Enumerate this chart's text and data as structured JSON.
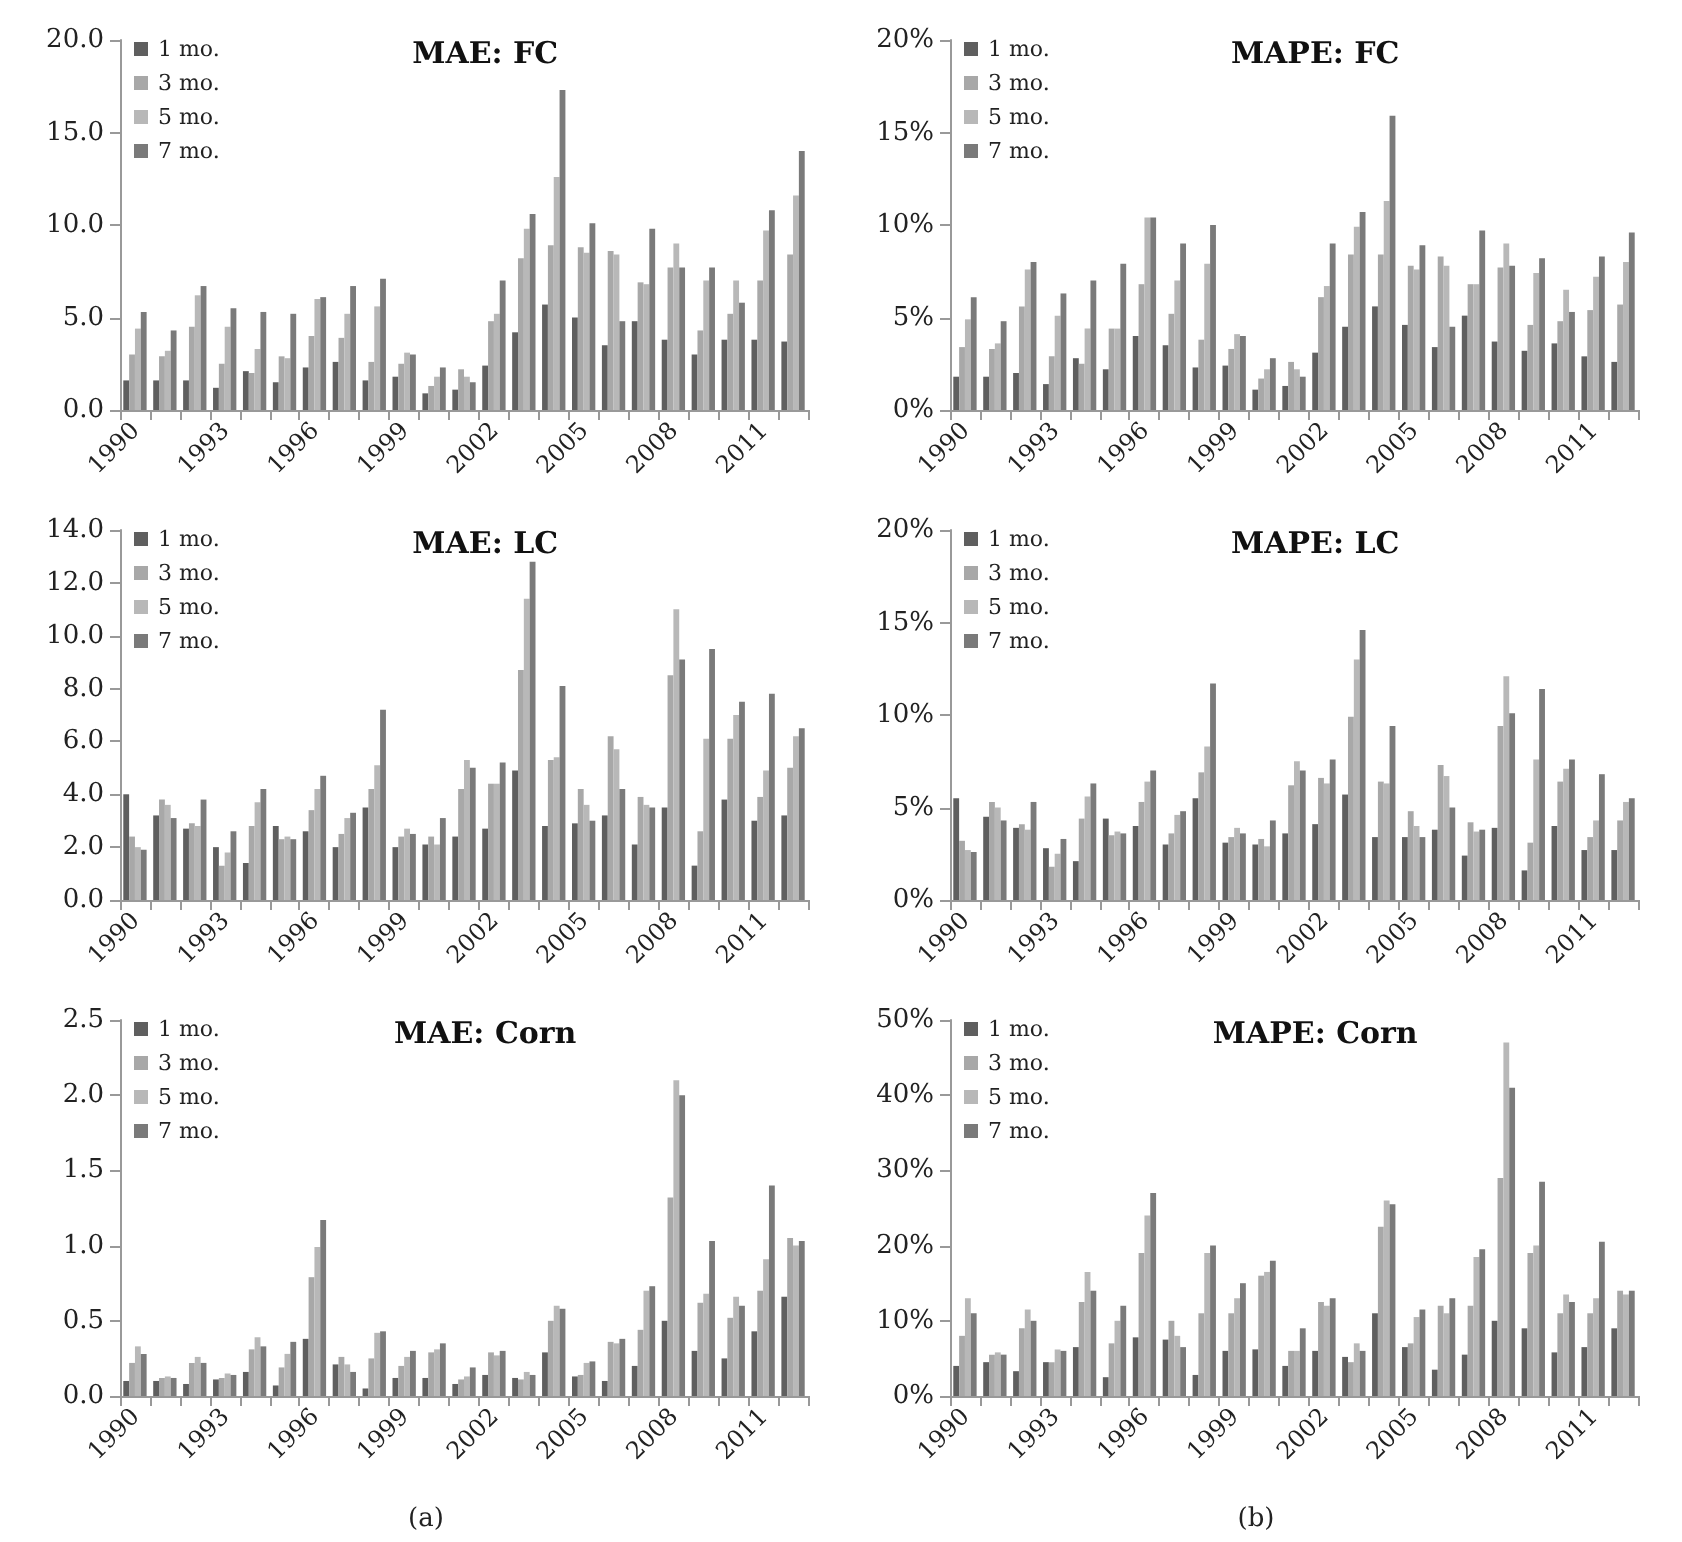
{
  "chart_data": [
    {
      "type": "bar",
      "title": "MAE: FC",
      "categories": [
        "1990",
        null,
        null,
        "1993",
        null,
        null,
        "1996",
        null,
        null,
        "1999",
        null,
        null,
        "2002",
        null,
        null,
        "2005",
        null,
        null,
        "2008",
        null,
        null,
        "2011",
        null
      ],
      "series": [
        {
          "name": "1 mo.",
          "color": "#5f5f5f",
          "values": [
            1.6,
            1.6,
            1.6,
            1.2,
            2.1,
            1.5,
            2.3,
            2.6,
            1.6,
            1.8,
            0.9,
            1.1,
            2.4,
            4.2,
            5.7,
            5.0,
            3.5,
            4.8,
            3.8,
            3.0,
            3.8,
            3.8,
            3.7
          ]
        },
        {
          "name": "3 mo.",
          "color": "#a8a8a8",
          "values": [
            3.0,
            2.9,
            4.5,
            2.5,
            2.0,
            2.9,
            4.0,
            3.9,
            2.6,
            2.5,
            1.3,
            2.2,
            4.8,
            8.2,
            8.9,
            8.8,
            8.6,
            6.9,
            7.7,
            4.3,
            5.2,
            7.0,
            8.4
          ]
        },
        {
          "name": "5 mo.",
          "color": "#b8b8b8",
          "values": [
            4.4,
            3.2,
            6.2,
            4.5,
            3.3,
            2.8,
            6.0,
            5.2,
            5.6,
            3.1,
            1.8,
            1.8,
            5.2,
            9.8,
            12.6,
            8.5,
            8.4,
            6.8,
            9.0,
            7.0,
            7.0,
            9.7,
            11.6
          ]
        },
        {
          "name": "7 mo.",
          "color": "#7a7a7a",
          "values": [
            5.3,
            4.3,
            6.7,
            5.5,
            5.3,
            5.2,
            6.1,
            6.7,
            7.1,
            3.0,
            2.3,
            1.5,
            7.0,
            10.6,
            17.3,
            10.1,
            4.8,
            9.8,
            7.7,
            7.7,
            5.8,
            10.8,
            14.0
          ]
        }
      ],
      "ylim": [
        0,
        20
      ],
      "yticks": [
        {
          "value": 0,
          "label": "0.0"
        },
        {
          "value": 5,
          "label": "5.0"
        },
        {
          "value": 10,
          "label": "10.0"
        },
        {
          "value": 15,
          "label": "15.0"
        },
        {
          "value": 20,
          "label": "20.0"
        }
      ],
      "legend": "top left",
      "grid": false
    },
    {
      "type": "bar",
      "title": "MAPE: FC",
      "categories": [
        "1990",
        null,
        null,
        "1993",
        null,
        null,
        "1996",
        null,
        null,
        "1999",
        null,
        null,
        "2002",
        null,
        null,
        "2005",
        null,
        null,
        "2008",
        null,
        null,
        "2011",
        null
      ],
      "series": [
        {
          "name": "1 mo.",
          "color": "#5f5f5f",
          "values": [
            1.8,
            1.8,
            2.0,
            1.4,
            2.8,
            2.2,
            4.0,
            3.5,
            2.3,
            2.4,
            1.1,
            1.3,
            3.1,
            4.5,
            5.6,
            4.6,
            3.4,
            5.1,
            3.7,
            3.2,
            3.6,
            2.9,
            2.6
          ]
        },
        {
          "name": "3 mo.",
          "color": "#a8a8a8",
          "values": [
            3.4,
            3.3,
            5.6,
            2.9,
            2.5,
            4.4,
            6.8,
            5.2,
            3.8,
            3.3,
            1.7,
            2.6,
            6.1,
            8.4,
            8.4,
            7.8,
            8.3,
            6.8,
            7.7,
            4.6,
            4.8,
            5.4,
            5.7
          ]
        },
        {
          "name": "5 mo.",
          "color": "#b8b8b8",
          "values": [
            4.9,
            3.6,
            7.6,
            5.1,
            4.4,
            4.4,
            10.4,
            7.0,
            7.9,
            4.1,
            2.2,
            2.2,
            6.7,
            9.9,
            11.3,
            7.6,
            7.8,
            6.8,
            9.0,
            7.4,
            6.5,
            7.2,
            8.0
          ]
        },
        {
          "name": "7 mo.",
          "color": "#7a7a7a",
          "values": [
            6.1,
            4.8,
            8.0,
            6.3,
            7.0,
            7.9,
            10.4,
            9.0,
            10.0,
            4.0,
            2.8,
            1.8,
            9.0,
            10.7,
            15.9,
            8.9,
            4.5,
            9.7,
            7.8,
            8.2,
            5.3,
            8.3,
            9.6
          ]
        }
      ],
      "ylim": [
        0,
        20
      ],
      "yticks": [
        {
          "value": 0,
          "label": "0%"
        },
        {
          "value": 5,
          "label": "5%"
        },
        {
          "value": 10,
          "label": "10%"
        },
        {
          "value": 15,
          "label": "15%"
        },
        {
          "value": 20,
          "label": "20%"
        }
      ],
      "legend": "top left",
      "grid": false
    },
    {
      "type": "bar",
      "title": "MAE: LC",
      "categories": [
        "1990",
        null,
        null,
        "1993",
        null,
        null,
        "1996",
        null,
        null,
        "1999",
        null,
        null,
        "2002",
        null,
        null,
        "2005",
        null,
        null,
        "2008",
        null,
        null,
        "2011",
        null
      ],
      "series": [
        {
          "name": "1 mo.",
          "color": "#5f5f5f",
          "values": [
            4.0,
            3.2,
            2.7,
            2.0,
            1.4,
            2.8,
            2.6,
            2.0,
            3.5,
            2.0,
            2.1,
            2.4,
            2.7,
            4.9,
            2.8,
            2.9,
            3.2,
            2.1,
            3.5,
            1.3,
            3.8,
            3.0,
            3.2
          ]
        },
        {
          "name": "3 mo.",
          "color": "#a8a8a8",
          "values": [
            2.4,
            3.8,
            2.9,
            1.3,
            2.8,
            2.3,
            3.4,
            2.5,
            4.2,
            2.4,
            2.4,
            4.2,
            4.4,
            8.7,
            5.3,
            4.2,
            6.2,
            3.9,
            8.5,
            2.6,
            6.1,
            3.9,
            5.0
          ]
        },
        {
          "name": "5 mo.",
          "color": "#b8b8b8",
          "values": [
            2.0,
            3.6,
            2.8,
            1.8,
            3.7,
            2.4,
            4.2,
            3.1,
            5.1,
            2.7,
            2.1,
            5.3,
            4.4,
            11.4,
            5.4,
            3.6,
            5.7,
            3.6,
            11.0,
            6.1,
            7.0,
            4.9,
            6.2
          ]
        },
        {
          "name": "7 mo.",
          "color": "#7a7a7a",
          "values": [
            1.9,
            3.1,
            3.8,
            2.6,
            4.2,
            2.3,
            4.7,
            3.3,
            7.2,
            2.5,
            3.1,
            5.0,
            5.2,
            12.8,
            8.1,
            3.0,
            4.2,
            3.5,
            9.1,
            9.5,
            7.5,
            7.8,
            6.5
          ]
        }
      ],
      "ylim": [
        0,
        14
      ],
      "yticks": [
        {
          "value": 0,
          "label": "0.0"
        },
        {
          "value": 2,
          "label": "2.0"
        },
        {
          "value": 4,
          "label": "4.0"
        },
        {
          "value": 6,
          "label": "6.0"
        },
        {
          "value": 8,
          "label": "8.0"
        },
        {
          "value": 10,
          "label": "10.0"
        },
        {
          "value": 12,
          "label": "12.0"
        },
        {
          "value": 14,
          "label": "14.0"
        }
      ],
      "legend": "top left",
      "grid": false
    },
    {
      "type": "bar",
      "title": "MAPE: LC",
      "categories": [
        "1990",
        null,
        null,
        "1993",
        null,
        null,
        "1996",
        null,
        null,
        "1999",
        null,
        null,
        "2002",
        null,
        null,
        "2005",
        null,
        null,
        "2008",
        null,
        null,
        "2011",
        null
      ],
      "series": [
        {
          "name": "1 mo.",
          "color": "#5f5f5f",
          "values": [
            5.5,
            4.5,
            3.9,
            2.8,
            2.1,
            4.4,
            4.0,
            3.0,
            5.5,
            3.1,
            3.0,
            3.6,
            4.1,
            5.7,
            3.4,
            3.4,
            3.8,
            2.4,
            3.9,
            1.6,
            4.0,
            2.7,
            2.7
          ]
        },
        {
          "name": "3 mo.",
          "color": "#a8a8a8",
          "values": [
            3.2,
            5.3,
            4.1,
            1.8,
            4.4,
            3.5,
            5.3,
            3.6,
            6.9,
            3.4,
            3.3,
            6.2,
            6.6,
            9.9,
            6.4,
            4.8,
            7.3,
            4.2,
            9.4,
            3.1,
            6.4,
            3.4,
            4.3
          ]
        },
        {
          "name": "5 mo.",
          "color": "#b8b8b8",
          "values": [
            2.7,
            5.0,
            3.8,
            2.5,
            5.6,
            3.7,
            6.4,
            4.6,
            8.3,
            3.9,
            2.9,
            7.5,
            6.3,
            13.0,
            6.3,
            4.0,
            6.7,
            3.7,
            12.1,
            7.6,
            7.1,
            4.3,
            5.3
          ]
        },
        {
          "name": "7 mo.",
          "color": "#7a7a7a",
          "values": [
            2.6,
            4.3,
            5.3,
            3.3,
            6.3,
            3.6,
            7.0,
            4.8,
            11.7,
            3.6,
            4.3,
            7.0,
            7.6,
            14.6,
            9.4,
            3.4,
            5.0,
            3.8,
            10.1,
            11.4,
            7.6,
            6.8,
            5.5
          ]
        }
      ],
      "ylim": [
        0,
        20
      ],
      "yticks": [
        {
          "value": 0,
          "label": "0%"
        },
        {
          "value": 5,
          "label": "5%"
        },
        {
          "value": 10,
          "label": "10%"
        },
        {
          "value": 15,
          "label": "15%"
        },
        {
          "value": 20,
          "label": "20%"
        }
      ],
      "legend": "top left",
      "grid": false
    },
    {
      "type": "bar",
      "title": "MAE: Corn",
      "categories": [
        "1990",
        null,
        null,
        "1993",
        null,
        null,
        "1996",
        null,
        null,
        "1999",
        null,
        null,
        "2002",
        null,
        null,
        "2005",
        null,
        null,
        "2008",
        null,
        null,
        "2011",
        null
      ],
      "series": [
        {
          "name": "1 mo.",
          "color": "#5f5f5f",
          "values": [
            0.1,
            0.1,
            0.08,
            0.11,
            0.16,
            0.07,
            0.38,
            0.21,
            0.05,
            0.12,
            0.12,
            0.08,
            0.14,
            0.12,
            0.29,
            0.13,
            0.1,
            0.2,
            0.5,
            0.3,
            0.25,
            0.43,
            0.66
          ]
        },
        {
          "name": "3 mo.",
          "color": "#a8a8a8",
          "values": [
            0.22,
            0.12,
            0.22,
            0.12,
            0.31,
            0.19,
            0.79,
            0.26,
            0.25,
            0.2,
            0.29,
            0.11,
            0.29,
            0.11,
            0.5,
            0.14,
            0.36,
            0.44,
            1.32,
            0.62,
            0.52,
            0.7,
            1.05
          ]
        },
        {
          "name": "5 mo.",
          "color": "#b8b8b8",
          "values": [
            0.33,
            0.13,
            0.26,
            0.15,
            0.39,
            0.28,
            0.99,
            0.21,
            0.42,
            0.26,
            0.31,
            0.13,
            0.27,
            0.16,
            0.6,
            0.22,
            0.35,
            0.7,
            2.1,
            0.68,
            0.66,
            0.91,
            1.0
          ]
        },
        {
          "name": "7 mo.",
          "color": "#7a7a7a",
          "values": [
            0.28,
            0.12,
            0.22,
            0.14,
            0.33,
            0.36,
            1.17,
            0.16,
            0.43,
            0.3,
            0.35,
            0.19,
            0.3,
            0.14,
            0.58,
            0.23,
            0.38,
            0.73,
            2.0,
            1.03,
            0.6,
            1.4,
            1.03
          ]
        }
      ],
      "ylim": [
        0,
        2.5
      ],
      "yticks": [
        {
          "value": 0,
          "label": "0.0"
        },
        {
          "value": 0.5,
          "label": "0.5"
        },
        {
          "value": 1,
          "label": "1.0"
        },
        {
          "value": 1.5,
          "label": "1.5"
        },
        {
          "value": 2,
          "label": "2.0"
        },
        {
          "value": 2.5,
          "label": "2.5"
        }
      ],
      "legend": "top left",
      "grid": false,
      "annotations": [
        "(a)"
      ]
    },
    {
      "type": "bar",
      "title": "MAPE: Corn",
      "categories": [
        "1990",
        null,
        null,
        "1993",
        null,
        null,
        "1996",
        null,
        null,
        "1999",
        null,
        null,
        "2002",
        null,
        null,
        "2005",
        null,
        null,
        "2008",
        null,
        null,
        "2011",
        null
      ],
      "series": [
        {
          "name": "1 mo.",
          "color": "#5f5f5f",
          "values": [
            4,
            4.5,
            3.3,
            4.5,
            6.5,
            2.5,
            7.8,
            7.5,
            2.8,
            6,
            6.2,
            4,
            6,
            5.2,
            11,
            6.5,
            3.5,
            5.5,
            10,
            9,
            5.8,
            6.5,
            9
          ]
        },
        {
          "name": "3 mo.",
          "color": "#a8a8a8",
          "values": [
            8,
            5.5,
            9,
            4.5,
            12.5,
            7,
            19,
            10,
            11,
            11,
            16,
            6,
            12.5,
            4.5,
            22.5,
            7,
            12,
            12,
            29,
            19,
            11,
            11,
            14
          ]
        },
        {
          "name": "5 mo.",
          "color": "#b8b8b8",
          "values": [
            13,
            5.8,
            11.5,
            6.2,
            16.5,
            10,
            24,
            8,
            19,
            13,
            16.5,
            6,
            12,
            7,
            26,
            10.5,
            11,
            18.5,
            47,
            20,
            13.5,
            13,
            13.5
          ]
        },
        {
          "name": "7 mo.",
          "color": "#7a7a7a",
          "values": [
            11,
            5.5,
            10,
            6,
            14,
            12,
            27,
            6.5,
            20,
            15,
            18,
            9,
            13,
            6,
            25.5,
            11.5,
            13,
            19.5,
            41,
            28.5,
            12.5,
            20.5,
            14
          ]
        }
      ],
      "ylim": [
        0,
        50
      ],
      "yticks": [
        {
          "value": 0,
          "label": "0%"
        },
        {
          "value": 10,
          "label": "10%"
        },
        {
          "value": 20,
          "label": "20%"
        },
        {
          "value": 30,
          "label": "30%"
        },
        {
          "value": 40,
          "label": "40%"
        },
        {
          "value": 50,
          "label": "50%"
        }
      ],
      "legend": "top left",
      "grid": false,
      "annotations": [
        "(b)"
      ]
    }
  ]
}
